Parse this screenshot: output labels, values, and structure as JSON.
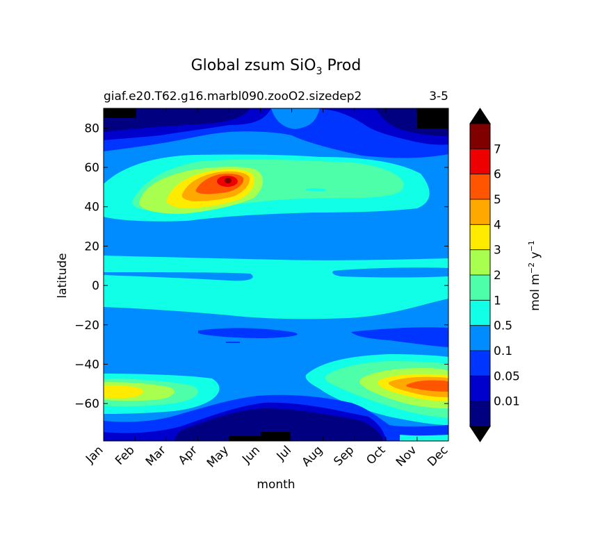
{
  "chart_data": {
    "type": "heatmap",
    "title": "Global zsum SiO",
    "title_sub": "3",
    "title_suffix": " Prod",
    "subtitle_left": "giaf.e20.T62.g16.marbl090.zooO2.sizedep2",
    "subtitle_right": "3-5",
    "xlabel": "month",
    "ylabel": "latitude",
    "x_ticks": [
      "Jan",
      "Feb",
      "Mar",
      "Apr",
      "May",
      "Jun",
      "Jul",
      "Aug",
      "Sep",
      "Oct",
      "Nov",
      "Dec"
    ],
    "xlim": [
      0.5,
      11.5
    ],
    "ylim": [
      -79,
      90
    ],
    "y_ticks": [
      80,
      60,
      40,
      20,
      0,
      -20,
      -40,
      -60
    ],
    "y_tick_labels": [
      "80",
      "60",
      "40",
      "20",
      "0",
      "−20",
      "−40",
      "−60"
    ],
    "colorbar": {
      "label": "mol m",
      "label_sup1": "−2",
      "label_mid": " y",
      "label_sup2": "−1",
      "levels": [
        "0.01",
        "0.05",
        "0.1",
        "0.5",
        "1",
        "2",
        "3",
        "4",
        "5",
        "6",
        "7"
      ],
      "colors": [
        "#000080",
        "#0000cc",
        "#0035ff",
        "#008cff",
        "#10ffe6",
        "#4dffa9",
        "#a9ff4d",
        "#ffeb00",
        "#ffa800",
        "#ff5500",
        "#ee0000",
        "#800000"
      ],
      "over_color": "#000000",
      "under_color": "#000000"
    },
    "hotspots": [
      {
        "name": "north-spring-bloom",
        "lon_month": 4.95,
        "lat": 53,
        "peak_level": "7"
      },
      {
        "name": "south-summer-bloom-nov-dec",
        "lon_month": 11.1,
        "lat": -52,
        "peak_level": "5"
      },
      {
        "name": "south-summer-bloom-jan",
        "lon_month": 0.7,
        "lat": -55,
        "peak_level": "3"
      }
    ]
  }
}
